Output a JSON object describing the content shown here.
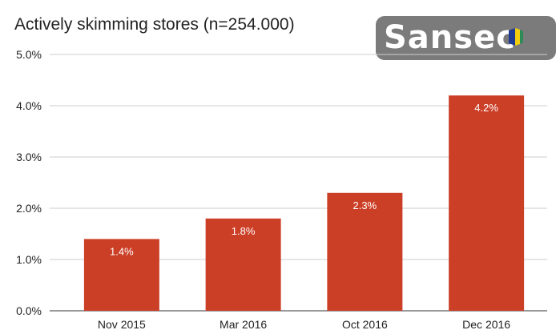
{
  "chart_data": {
    "type": "bar",
    "title": "Actively skimming stores (n=254.000)",
    "xlabel": "",
    "ylabel": "",
    "categories": [
      "Nov 2015",
      "Mar 2016",
      "Oct 2016",
      "Dec 2016"
    ],
    "values": [
      1.4,
      1.8,
      2.3,
      4.2
    ],
    "data_labels": [
      "1.4%",
      "1.8%",
      "2.3%",
      "4.2%"
    ],
    "ylim": [
      0,
      5
    ],
    "yticks": [
      0,
      1,
      2,
      3,
      4,
      5
    ],
    "ytick_labels": [
      "0.0%",
      "1.0%",
      "2.0%",
      "3.0%",
      "4.0%",
      "5.0%"
    ],
    "grid": true,
    "bar_color": "#cc3f27"
  },
  "logo": {
    "text": "Sansec",
    "colors": [
      "#1f3a93",
      "#f2cc0f",
      "#2e8b57"
    ]
  }
}
